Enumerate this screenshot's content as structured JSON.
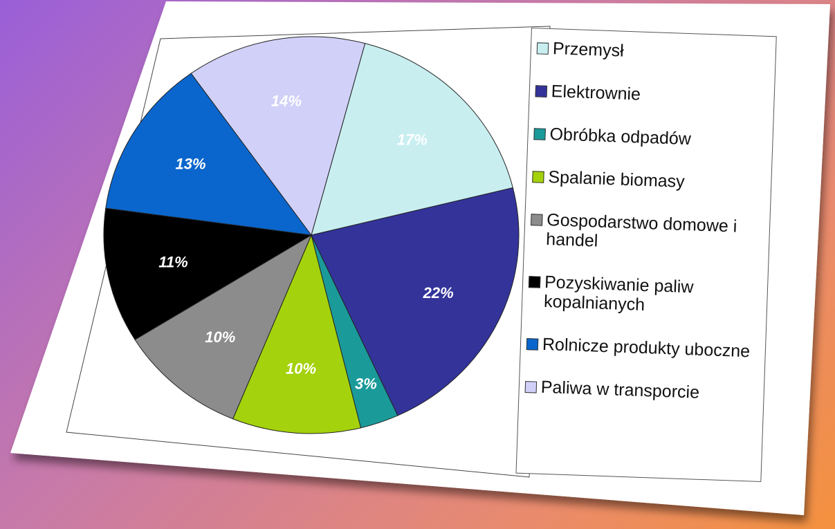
{
  "chart_data": {
    "type": "pie",
    "categories": [
      "Przemysł",
      "Elektrownie",
      "Obróbka odpadów",
      "Spalanie biomasy",
      "Gospodarstwo domowe i handel",
      "Pozyskiwanie paliw kopalnianych",
      "Rolnicze produkty uboczne",
      "Paliwa w transporcie"
    ],
    "values": [
      17,
      22,
      3,
      10,
      10,
      11,
      13,
      14
    ],
    "value_labels": [
      "17%",
      "22%",
      "3%",
      "10%",
      "10%",
      "11%",
      "13%",
      "14%"
    ],
    "colors": [
      "#c8eef0",
      "#33339a",
      "#1b9a9a",
      "#a4d20c",
      "#8c8c8c",
      "#000000",
      "#0a66cc",
      "#d0d0f8"
    ],
    "legend": "right"
  }
}
